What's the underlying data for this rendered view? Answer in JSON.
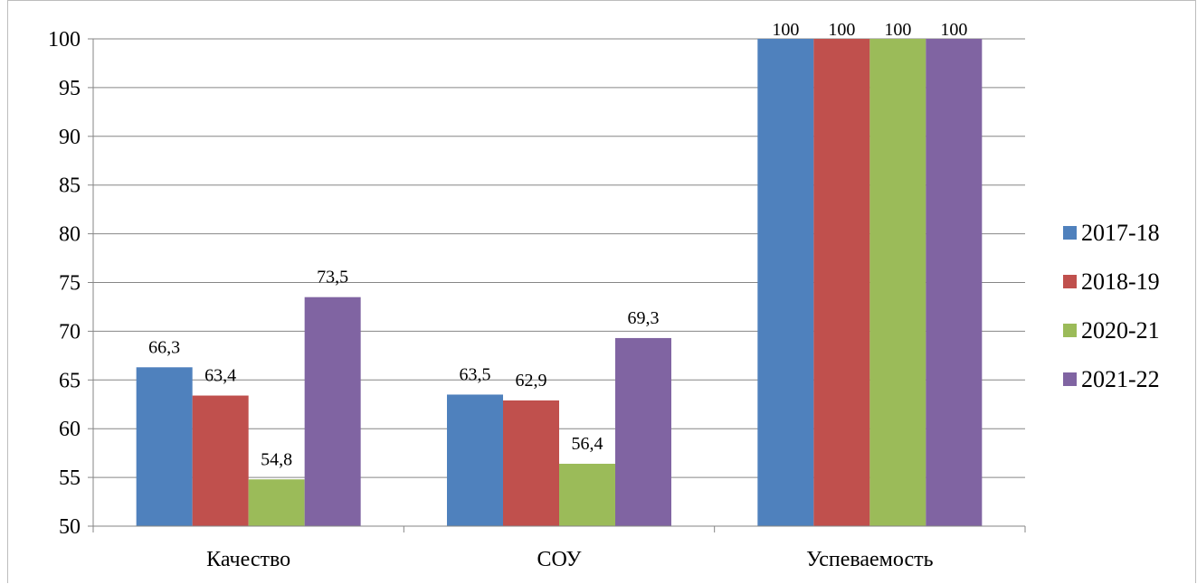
{
  "chart_data": {
    "type": "bar",
    "categories": [
      "Качество",
      "СОУ",
      "Успеваемость"
    ],
    "series": [
      {
        "name": "2017-18",
        "color": "#4f81bd",
        "values": [
          66.3,
          63.5,
          100
        ],
        "labels": [
          "66,3",
          "63,5",
          "100"
        ]
      },
      {
        "name": "2018-19",
        "color": "#c0504d",
        "values": [
          63.4,
          62.9,
          100
        ],
        "labels": [
          "63,4",
          "62,9",
          "100"
        ]
      },
      {
        "name": "2020-21",
        "color": "#9bbb59",
        "values": [
          54.8,
          56.4,
          100
        ],
        "labels": [
          "54,8",
          "56,4",
          "100"
        ]
      },
      {
        "name": "2021-22",
        "color": "#8064a2",
        "values": [
          73.5,
          69.3,
          100
        ],
        "labels": [
          "73,5",
          "69,3",
          "100"
        ]
      }
    ],
    "ylim": [
      50,
      100
    ],
    "yticks": [
      50,
      55,
      60,
      65,
      70,
      75,
      80,
      85,
      90,
      95,
      100
    ],
    "grid": true,
    "legend": "right"
  }
}
